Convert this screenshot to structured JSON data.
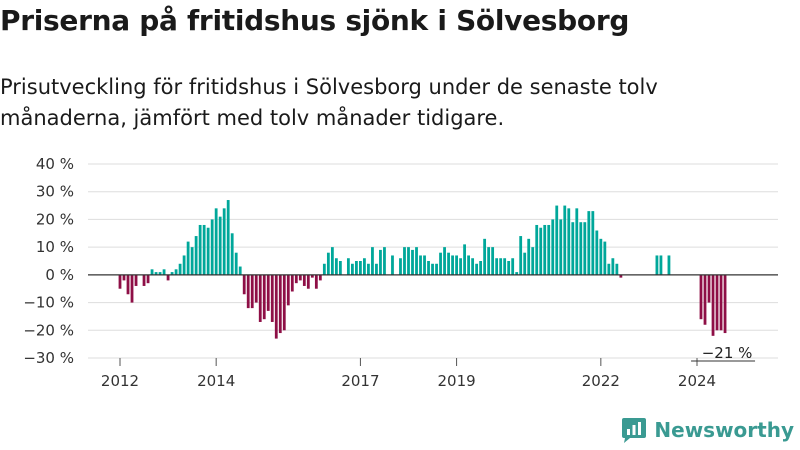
{
  "header": {
    "title": "Priserna på fritidshus sjönk i Sölvesborg",
    "subtitle": "Prisutveckling för fritidshus i Sölvesborg under de senaste tolv månaderna, jämfört med tolv månader tidigare."
  },
  "brand": {
    "name": "Newsworthy",
    "icon": "newsworthy-logo-icon"
  },
  "colors": {
    "positive": "#00a79a",
    "negative": "#8e0f46",
    "grid": "#dddddd",
    "zero_line": "#333333",
    "brand": "#3a9a92"
  },
  "chart_data": {
    "type": "bar",
    "title": "",
    "xlabel": "",
    "ylabel": "",
    "ylim": [
      -30,
      40
    ],
    "y_ticks": [
      40,
      30,
      20,
      10,
      0,
      -10,
      -20,
      -30
    ],
    "y_tick_labels": [
      "40 %",
      "30 %",
      "20 %",
      "10 %",
      "0 %",
      "−10 %",
      "−20 %",
      "−30 %"
    ],
    "x_tick_labels": [
      "2012",
      "2014",
      "2017",
      "2019",
      "2022",
      "2024"
    ],
    "x_tick_dates": [
      "2012-01",
      "2014-01",
      "2017-01",
      "2019-01",
      "2022-01",
      "2024-01"
    ],
    "grid": true,
    "annotation": "−21 %",
    "series": [
      {
        "points": [
          [
            "2012-01",
            -5
          ],
          [
            "2012-02",
            -2
          ],
          [
            "2012-03",
            -7
          ],
          [
            "2012-04",
            -10
          ],
          [
            "2012-05",
            -4
          ],
          [
            "2012-07",
            -4
          ],
          [
            "2012-08",
            -3
          ],
          [
            "2012-09",
            2
          ],
          [
            "2012-10",
            1
          ],
          [
            "2012-11",
            1
          ],
          [
            "2012-12",
            2
          ],
          [
            "2013-01",
            -2
          ],
          [
            "2013-02",
            1
          ],
          [
            "2013-03",
            2
          ],
          [
            "2013-04",
            4
          ],
          [
            "2013-05",
            7
          ],
          [
            "2013-06",
            12
          ],
          [
            "2013-07",
            10
          ],
          [
            "2013-08",
            14
          ],
          [
            "2013-09",
            18
          ],
          [
            "2013-10",
            18
          ],
          [
            "2013-11",
            17
          ],
          [
            "2013-12",
            20
          ],
          [
            "2014-01",
            24
          ],
          [
            "2014-02",
            21
          ],
          [
            "2014-03",
            24
          ],
          [
            "2014-04",
            27
          ],
          [
            "2014-05",
            15
          ],
          [
            "2014-06",
            8
          ],
          [
            "2014-07",
            3
          ],
          [
            "2014-08",
            -7
          ],
          [
            "2014-09",
            -12
          ],
          [
            "2014-10",
            -12
          ],
          [
            "2014-11",
            -10
          ],
          [
            "2014-12",
            -17
          ],
          [
            "2015-01",
            -16
          ],
          [
            "2015-02",
            -13
          ],
          [
            "2015-03",
            -17
          ],
          [
            "2015-04",
            -23
          ],
          [
            "2015-05",
            -21
          ],
          [
            "2015-06",
            -20
          ],
          [
            "2015-07",
            -11
          ],
          [
            "2015-08",
            -6
          ],
          [
            "2015-09",
            -3
          ],
          [
            "2015-10",
            -2
          ],
          [
            "2015-11",
            -4
          ],
          [
            "2015-12",
            -5
          ],
          [
            "2016-01",
            -1
          ],
          [
            "2016-02",
            -5
          ],
          [
            "2016-03",
            -2
          ],
          [
            "2016-04",
            4
          ],
          [
            "2016-05",
            8
          ],
          [
            "2016-06",
            10
          ],
          [
            "2016-07",
            6
          ],
          [
            "2016-08",
            5
          ],
          [
            "2016-10",
            6
          ],
          [
            "2016-11",
            4
          ],
          [
            "2016-12",
            5
          ],
          [
            "2017-01",
            5
          ],
          [
            "2017-02",
            6
          ],
          [
            "2017-03",
            4
          ],
          [
            "2017-04",
            10
          ],
          [
            "2017-05",
            4
          ],
          [
            "2017-06",
            9
          ],
          [
            "2017-07",
            10
          ],
          [
            "2017-09",
            7
          ],
          [
            "2017-11",
            6
          ],
          [
            "2017-12",
            10
          ],
          [
            "2018-01",
            10
          ],
          [
            "2018-02",
            9
          ],
          [
            "2018-03",
            10
          ],
          [
            "2018-04",
            7
          ],
          [
            "2018-05",
            7
          ],
          [
            "2018-06",
            5
          ],
          [
            "2018-07",
            4
          ],
          [
            "2018-08",
            4
          ],
          [
            "2018-09",
            8
          ],
          [
            "2018-10",
            10
          ],
          [
            "2018-11",
            8
          ],
          [
            "2018-12",
            7
          ],
          [
            "2019-01",
            7
          ],
          [
            "2019-02",
            6
          ],
          [
            "2019-03",
            11
          ],
          [
            "2019-04",
            7
          ],
          [
            "2019-05",
            6
          ],
          [
            "2019-06",
            4
          ],
          [
            "2019-07",
            5
          ],
          [
            "2019-08",
            13
          ],
          [
            "2019-09",
            10
          ],
          [
            "2019-10",
            10
          ],
          [
            "2019-11",
            6
          ],
          [
            "2019-12",
            6
          ],
          [
            "2020-01",
            6
          ],
          [
            "2020-02",
            5
          ],
          [
            "2020-03",
            6
          ],
          [
            "2020-04",
            1
          ],
          [
            "2020-05",
            14
          ],
          [
            "2020-06",
            8
          ],
          [
            "2020-07",
            13
          ],
          [
            "2020-08",
            10
          ],
          [
            "2020-09",
            18
          ],
          [
            "2020-10",
            17
          ],
          [
            "2020-11",
            18
          ],
          [
            "2020-12",
            18
          ],
          [
            "2021-01",
            20
          ],
          [
            "2021-02",
            25
          ],
          [
            "2021-03",
            20
          ],
          [
            "2021-04",
            25
          ],
          [
            "2021-05",
            24
          ],
          [
            "2021-06",
            19
          ],
          [
            "2021-07",
            24
          ],
          [
            "2021-08",
            19
          ],
          [
            "2021-09",
            19
          ],
          [
            "2021-10",
            23
          ],
          [
            "2021-11",
            23
          ],
          [
            "2021-12",
            16
          ],
          [
            "2022-01",
            13
          ],
          [
            "2022-02",
            12
          ],
          [
            "2022-03",
            4
          ],
          [
            "2022-04",
            6
          ],
          [
            "2022-05",
            4
          ],
          [
            "2022-06",
            -1
          ],
          [
            "2023-03",
            7
          ],
          [
            "2023-04",
            7
          ],
          [
            "2023-06",
            7
          ],
          [
            "2024-02",
            -16
          ],
          [
            "2024-03",
            -18
          ],
          [
            "2024-04",
            -10
          ],
          [
            "2024-05",
            -22
          ],
          [
            "2024-06",
            -20
          ],
          [
            "2024-07",
            -20
          ],
          [
            "2024-08",
            -21
          ]
        ]
      }
    ]
  }
}
